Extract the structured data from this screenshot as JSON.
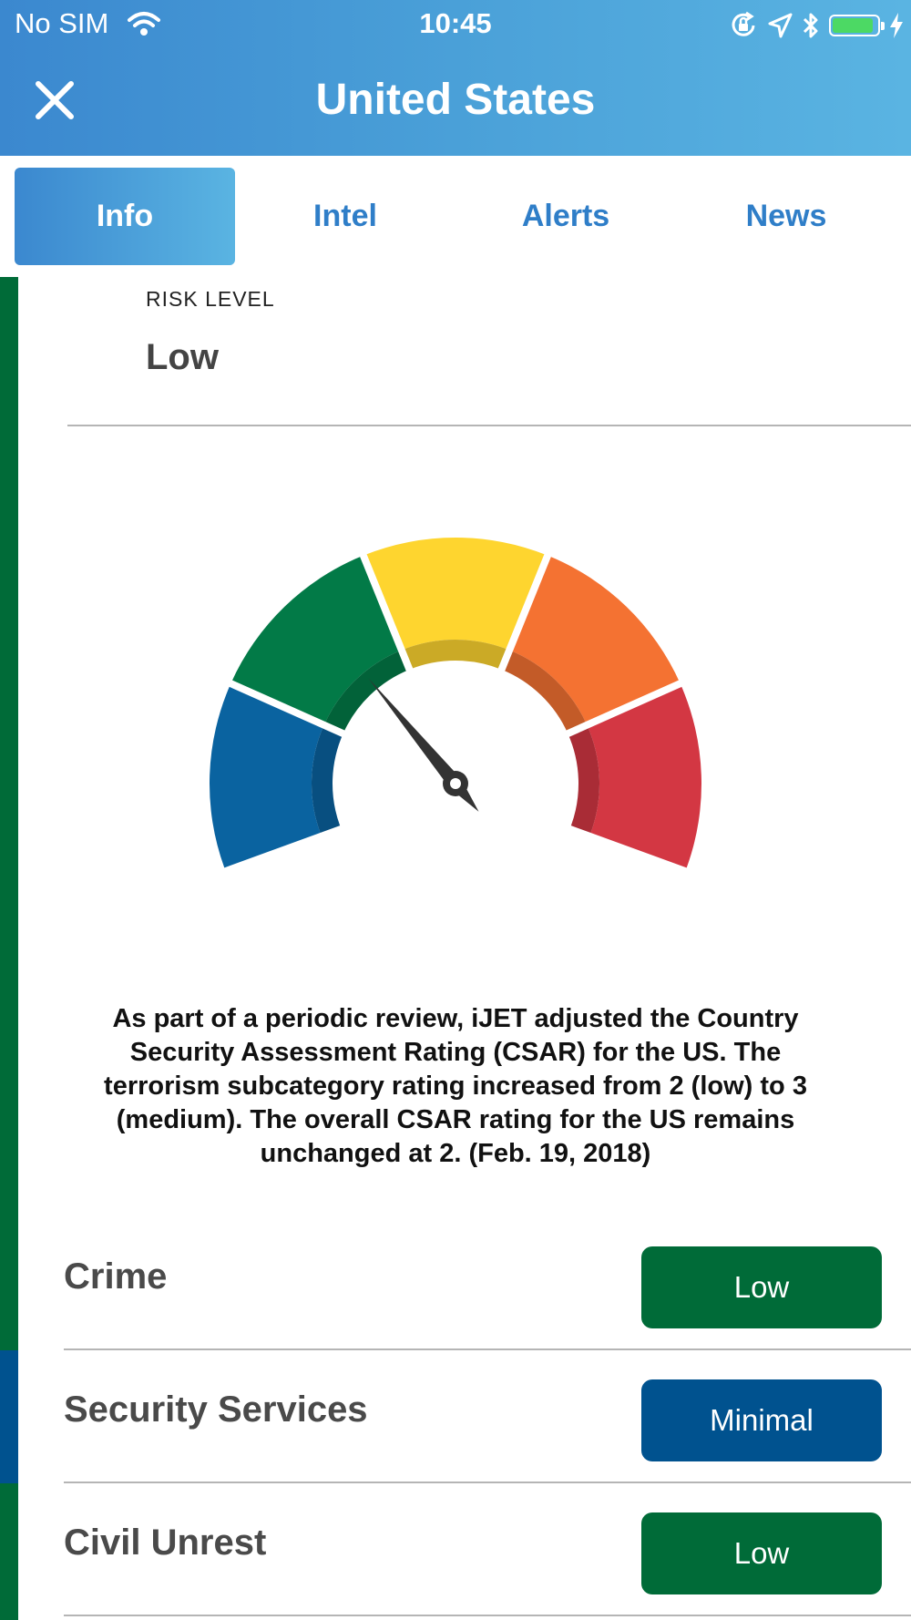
{
  "status_bar": {
    "carrier": "No SIM",
    "time": "10:45"
  },
  "nav": {
    "title": "United States",
    "close_icon": "close-icon"
  },
  "tabs": [
    {
      "label": "Info",
      "active": true
    },
    {
      "label": "Intel",
      "active": false
    },
    {
      "label": "Alerts",
      "active": false
    },
    {
      "label": "News",
      "active": false
    }
  ],
  "risk": {
    "label": "RISK LEVEL",
    "value": "Low",
    "gauge": {
      "segment_colors": [
        "#0a63a0",
        "#027a47",
        "#fed52f",
        "#f47232",
        "#d33743"
      ],
      "needle_segment": 2
    }
  },
  "description": "As part of a periodic review, iJET adjusted the Country Security Assessment Rating (CSAR) for the US. The terrorism subcategory rating increased from 2 (low) to 3 (medium). The overall CSAR rating for the US remains unchanged at 2. (Feb. 19, 2018)",
  "categories": [
    {
      "name": "Crime",
      "level": "Low",
      "color": "#006b38"
    },
    {
      "name": "Security Services",
      "level": "Minimal",
      "color": "#00528f"
    },
    {
      "name": "Civil Unrest",
      "level": "Low",
      "color": "#006b38"
    }
  ]
}
